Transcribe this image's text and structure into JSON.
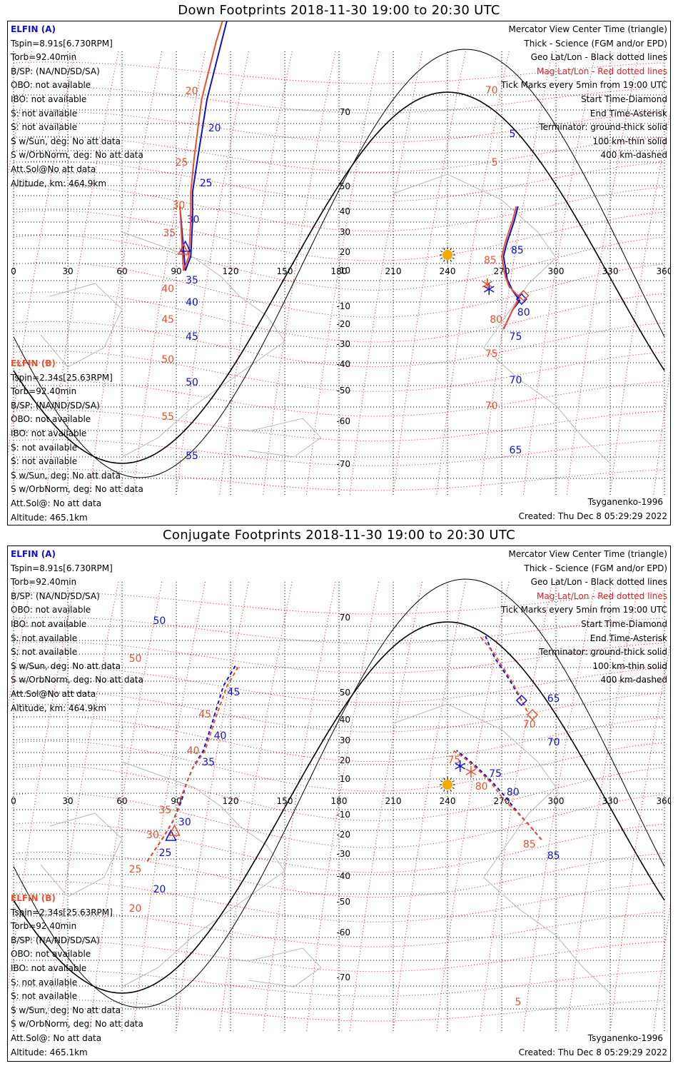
{
  "panels": [
    {
      "title": "Down Footprints 2018-11-30 19:00 to 20:30 UTC",
      "sat_a": {
        "name": "ELFIN (A)",
        "lines": [
          "Tspin=8.91s[6.730RPM]",
          "Torb=92.40min",
          "B/SP: (NA/ND/SD/SA)",
          "OBO: not available",
          "IBO: not available",
          "S: not available",
          "S: not available",
          "S w/Sun, deg: No att data",
          "S w/OrbNorm, deg: No att data",
          "Att.Sol@No att data",
          "Altitude, km: 464.9km"
        ]
      },
      "sat_b": {
        "name": "ELFIN (B)",
        "lines": [
          "Tspin=2.34s[25.63RPM]",
          "Torb=92.40min",
          "B/SP: (NA/ND/SD/SA)",
          "OBO: not available",
          "IBO: not available",
          "S: not available",
          "S: not available",
          "S w/Sun, deg: No att data",
          "S w/OrbNorm, deg: No att data",
          "Att.Sol@: No att data",
          "Altitude: 465.1km"
        ]
      },
      "legend": [
        "Mercator View Center Time (triangle)",
        "Thick - Science (FGM and/or EPD)",
        "Geo Lat/Lon - Black dotted lines",
        "Mag Lat/Lon - Red dotted lines",
        "Tick Marks every 5min from 19:00 UTC",
        "Start Time-Diamond",
        "End Time-Asterisk",
        "Terminator: ground-thick solid",
        "100 km-thin solid",
        "400 km-dashed"
      ],
      "model": "Tsyganenko-1996",
      "created": "Created: Thu Dec  8 05:29:29 2022",
      "lon_ticks": [
        "0",
        "30",
        "60",
        "90",
        "120",
        "150",
        "180",
        "210",
        "240",
        "270",
        "300",
        "330",
        "360"
      ],
      "lat_ticks": [
        "70",
        "50",
        "40",
        "30",
        "20",
        "10",
        "-10",
        "-20",
        "-30",
        "-40",
        "-50",
        "-60",
        "-70"
      ],
      "tracks": [
        {
          "id": "a-west",
          "color": "#1010d0",
          "dashed": false,
          "points": [
            [
              92,
              -90
            ],
            [
              95,
              0
            ],
            [
              98,
              -20
            ],
            [
              99,
              -70
            ],
            [
              99,
              -110
            ],
            [
              102,
              -160
            ],
            [
              107,
              -240
            ],
            [
              115,
              -320
            ],
            [
              120,
              -370
            ],
            [
              125,
              -398
            ]
          ],
          "ticks": [
            [
              "20",
              178
            ],
            [
              "25",
              255
            ],
            [
              "30",
              306
            ],
            [
              "35",
              391
            ],
            [
              "40",
              422
            ],
            [
              "45",
              470
            ],
            [
              "50",
              534
            ],
            [
              "55",
              637
            ]
          ]
        },
        {
          "id": "b-west",
          "color": "#e85030",
          "dashed": false,
          "points": [
            [
              92,
              -90
            ],
            [
              94,
              0
            ],
            [
              97,
              -20
            ],
            [
              98,
              -70
            ],
            [
              98,
              -110
            ],
            [
              100,
              -160
            ],
            [
              104,
              -240
            ],
            [
              112,
              -320
            ],
            [
              118,
              -370
            ],
            [
              123,
              -398
            ]
          ],
          "ticks": [
            [
              "20",
              126
            ],
            [
              "25",
              226
            ],
            [
              "30",
              286
            ],
            [
              "35",
              325
            ],
            [
              "40",
              403
            ],
            [
              "45",
              446
            ],
            [
              "50",
              502
            ],
            [
              "55",
              582
            ]
          ]
        },
        {
          "id": "a-east",
          "color": "#1010d0",
          "dashed": false,
          "points": [
            [
              271,
              82
            ],
            [
              276,
              55
            ],
            [
              280,
              42
            ],
            [
              276,
              28
            ],
            [
              273,
              12
            ],
            [
              272,
              -5
            ],
            [
              271,
              -20
            ],
            [
              273,
              -40
            ],
            [
              275,
              -55
            ],
            [
              277,
              -70
            ],
            [
              279,
              -90
            ]
          ],
          "ticks": [
            [
              "5",
              186
            ],
            [
              "85",
              349
            ],
            [
              "80",
              436
            ],
            [
              "75",
              470
            ],
            [
              "70",
              531
            ],
            [
              "65",
              629
            ]
          ]
        },
        {
          "id": "b-east",
          "color": "#e85030",
          "dashed": false,
          "points": [
            [
              271,
              82
            ],
            [
              276,
              55
            ],
            [
              280,
              38
            ],
            [
              274,
              22
            ],
            [
              272,
              8
            ],
            [
              271,
              -5
            ],
            [
              270,
              -20
            ],
            [
              272,
              -40
            ],
            [
              274,
              -55
            ],
            [
              276,
              -70
            ],
            [
              278,
              -90
            ]
          ],
          "ticks": [
            [
              "70",
              125
            ],
            [
              "5",
              226
            ],
            [
              "85",
              363
            ],
            [
              "80",
              446
            ],
            [
              "75",
              494
            ],
            [
              "70",
              567
            ]
          ]
        }
      ],
      "markers": [
        {
          "type": "diamond",
          "color": "#1010d0",
          "lon": 281,
          "lat": 40
        },
        {
          "type": "diamond",
          "color": "#e85030",
          "lon": 282,
          "lat": 35
        },
        {
          "type": "asterisk",
          "color": "#1010d0",
          "lon": 263,
          "lat": 26
        },
        {
          "type": "asterisk",
          "color": "#e85030",
          "lon": 262,
          "lat": 19
        },
        {
          "type": "triangle",
          "color": "#1010d0",
          "lon": 95,
          "lat": -33
        },
        {
          "type": "triangle",
          "color": "#e85030",
          "lon": 94,
          "lat": -29
        },
        {
          "type": "sun",
          "color": "#f5a800",
          "lon": 240,
          "lat": -22
        }
      ]
    },
    {
      "title": "Conjugate Footprints 2018-11-30 19:00 to 20:30 UTC",
      "sat_a": {
        "name": "ELFIN (A)",
        "lines": [
          "Tspin=8.91s[6.730RPM]",
          "Torb=92.40min",
          "B/SP: (NA/ND/SD/SA)",
          "OBO: not available",
          "IBO: not available",
          "S: not available",
          "S: not available",
          "S w/Sun, deg: No att data",
          "S w/OrbNorm, deg: No att data",
          "Att.Sol@No att data",
          "Altitude, km: 464.9km"
        ]
      },
      "sat_b": {
        "name": "ELFIN (B)",
        "lines": [
          "Tspin=2.34s[25.63RPM]",
          "Torb=92.40min",
          "B/SP: (NA/ND/SD/SA)",
          "OBO: not available",
          "IBO: not available",
          "S: not available",
          "S: not available",
          "S w/Sun, deg: No att data",
          "S w/OrbNorm, deg: No att data",
          "Att.Sol@: No att data",
          "Altitude: 465.1km"
        ]
      },
      "legend": [
        "Mercator View Center Time (triangle)",
        "Thick - Science (FGM and/or EPD)",
        "Geo Lat/Lon - Black dotted lines",
        "Mag Lat/Lon - Red dotted lines",
        "Tick Marks every 5min from 19:00 UTC",
        "Start Time-Diamond",
        "End Time-Asterisk",
        "Terminator: ground-thick solid",
        "100 km-thin solid",
        "400 km-dashed"
      ],
      "model": "Tsyganenko-1996",
      "created": "Created: Thu Dec  8 05:29:29 2022",
      "lon_ticks": [
        "0",
        "30",
        "60",
        "90",
        "120",
        "150",
        "180",
        "210",
        "240",
        "270",
        "300",
        "330",
        "360"
      ],
      "lat_ticks": [
        "70",
        "50",
        "40",
        "30",
        "20",
        "10",
        "-10",
        "-20",
        "-30",
        "-40",
        "-50",
        "-60",
        "-70"
      ],
      "tracks": [
        {
          "id": "a-west",
          "color": "#1010d0",
          "dashed": true,
          "points": [
            [
              74,
              85
            ],
            [
              82,
              55
            ],
            [
              88,
              30
            ],
            [
              93,
              0
            ],
            [
              95,
              -20
            ],
            [
              99,
              -45
            ],
            [
              105,
              -70
            ],
            [
              110,
              -110
            ],
            [
              116,
              -160
            ],
            [
              123,
              -190
            ]
          ],
          "ticks": [
            [
              "50",
              868
            ],
            [
              "45",
              968
            ],
            [
              "40",
              1029
            ],
            [
              "35",
              1066
            ],
            [
              "30",
              1150
            ],
            [
              "25",
              1193
            ],
            [
              "20",
              1244
            ]
          ]
        },
        {
          "id": "b-west",
          "color": "#e85030",
          "dashed": true,
          "points": [
            [
              74,
              85
            ],
            [
              82,
              55
            ],
            [
              89,
              25
            ],
            [
              92,
              0
            ],
            [
              95,
              -20
            ],
            [
              99,
              -45
            ],
            [
              106,
              -70
            ],
            [
              111,
              -110
            ],
            [
              118,
              -160
            ],
            [
              125,
              -190
            ]
          ],
          "ticks": [
            [
              "50",
              921
            ],
            [
              "45",
              999
            ],
            [
              "40",
              1050
            ],
            [
              "35",
              1133
            ],
            [
              "30",
              1168
            ],
            [
              "25",
              1216
            ],
            [
              "20",
              1271
            ]
          ]
        },
        {
          "id": "a-east",
          "color": "#1010d0",
          "dashed": true,
          "points": [
            [
              292,
              55
            ],
            [
              287,
              40
            ],
            [
              280,
              20
            ],
            [
              276,
              8
            ],
            [
              272,
              -5
            ],
            [
              265,
              -25
            ],
            [
              257,
              -45
            ],
            [
              250,
              -60
            ],
            [
              245,
              -70
            ]
          ],
          "ticks": [
            [
              "65",
              977
            ],
            [
              "70",
              1038
            ],
            [
              "75",
              1082
            ],
            [
              "80",
              1108
            ],
            [
              "85",
              1197
            ]
          ]
        },
        {
          "id": "b-east",
          "color": "#e85030",
          "dashed": true,
          "points": [
            [
              292,
              55
            ],
            [
              287,
              40
            ],
            [
              279,
              18
            ],
            [
              274,
              6
            ],
            [
              270,
              -5
            ],
            [
              264,
              -25
            ],
            [
              256,
              -45
            ],
            [
              249,
              -60
            ],
            [
              243,
              -70
            ]
          ],
          "ticks": [
            [
              "70",
              1013
            ],
            [
              "75",
              1063
            ],
            [
              "80",
              1100
            ],
            [
              "85",
              1181
            ]
          ]
        },
        {
          "id": "start-tail",
          "color": "#1010d0",
          "dashed": true,
          "points": [
            [
              281,
              -140
            ],
            [
              274,
              -170
            ],
            [
              266,
              -200
            ],
            [
              261,
              -230
            ]
          ],
          "ticks": []
        },
        {
          "id": "start-tail-b",
          "color": "#e85030",
          "dashed": true,
          "points": [
            [
              284,
              -125
            ],
            [
              276,
              -165
            ],
            [
              266,
              -205
            ],
            [
              258,
              -230
            ]
          ],
          "ticks": [
            [
              "5",
              1402
            ]
          ]
        }
      ],
      "markers": [
        {
          "type": "diamond",
          "color": "#1010d0",
          "lon": 281,
          "lat": -140
        },
        {
          "type": "diamond",
          "color": "#e85030",
          "lon": 287,
          "lat": -120
        },
        {
          "type": "asterisk",
          "color": "#1010d0",
          "lon": 247,
          "lat": -48
        },
        {
          "type": "asterisk",
          "color": "#e85030",
          "lon": 253,
          "lat": -40
        },
        {
          "type": "triangle",
          "color": "#1010d0",
          "lon": 87,
          "lat": 50
        },
        {
          "type": "triangle",
          "color": "#e85030",
          "lon": 89,
          "lat": 43
        },
        {
          "type": "sun",
          "color": "#f5a800",
          "lon": 240,
          "lat": -22
        }
      ]
    }
  ]
}
